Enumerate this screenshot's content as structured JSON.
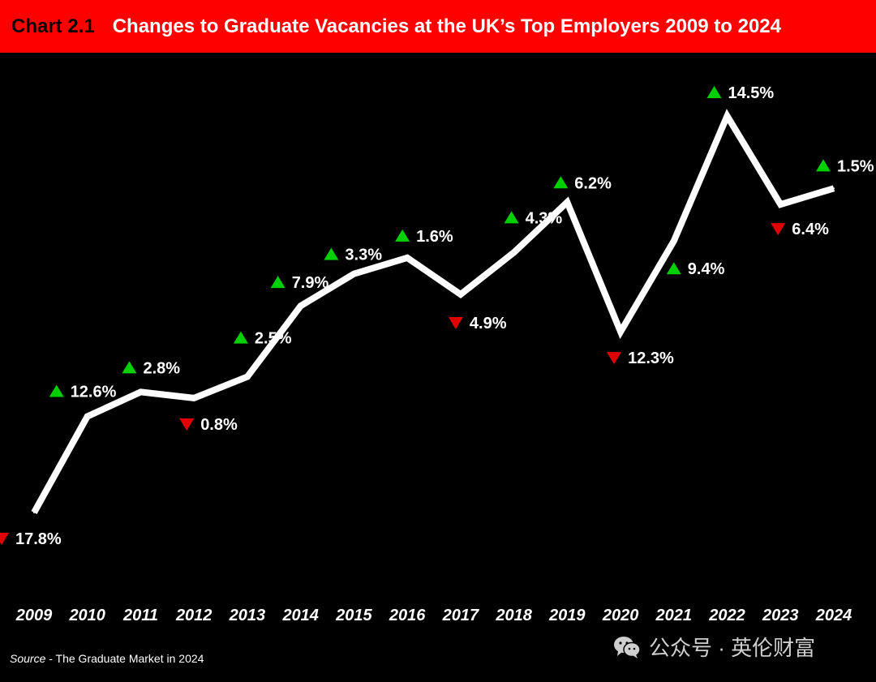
{
  "header": {
    "chart_number": "Chart 2.1",
    "title": "Changes to Graduate Vacancies at the UK’s Top Employers 2009 to 2024"
  },
  "source": {
    "label": "Source",
    "text": " - The Graduate Market in 2024"
  },
  "watermark": {
    "icon": "wechat-icon",
    "text": "公众号 · 英伦财富"
  },
  "colors": {
    "title_bar": "#ff0000",
    "background": "#000000",
    "line": "#ffffff",
    "up": "#00d000",
    "down": "#e00000"
  },
  "chart_data": {
    "type": "line",
    "title": "Changes to Graduate Vacancies at the UK’s Top Employers 2009 to 2024",
    "xlabel": "",
    "ylabel": "",
    "grid": false,
    "categories": [
      "2009",
      "2010",
      "2011",
      "2012",
      "2013",
      "2014",
      "2015",
      "2016",
      "2017",
      "2018",
      "2019",
      "2020",
      "2021",
      "2022",
      "2023",
      "2024"
    ],
    "series": [
      {
        "values": [
          0,
          12.6,
          15.8,
          15.0,
          17.8,
          27.1,
          31.3,
          33.4,
          28.6,
          34.1,
          40.7,
          23.7,
          35.6,
          52.0,
          40.4,
          42.5
        ]
      }
    ],
    "annotations": [
      {
        "x": "2009",
        "label": "17.8%",
        "direction": "down"
      },
      {
        "x": "2010",
        "label": "12.6%",
        "direction": "up"
      },
      {
        "x": "2011",
        "label": "2.8%",
        "direction": "up"
      },
      {
        "x": "2012",
        "label": "0.8%",
        "direction": "down"
      },
      {
        "x": "2013",
        "label": "2.5%",
        "direction": "up"
      },
      {
        "x": "2014",
        "label": "7.9%",
        "direction": "up"
      },
      {
        "x": "2015",
        "label": "3.3%",
        "direction": "up"
      },
      {
        "x": "2016",
        "label": "1.6%",
        "direction": "up"
      },
      {
        "x": "2017",
        "label": "4.9%",
        "direction": "down"
      },
      {
        "x": "2018",
        "label": "4.3%",
        "direction": "up"
      },
      {
        "x": "2019",
        "label": "6.2%",
        "direction": "up"
      },
      {
        "x": "2020",
        "label": "12.3%",
        "direction": "down"
      },
      {
        "x": "2021",
        "label": "9.4%",
        "direction": "up"
      },
      {
        "x": "2022",
        "label": "14.5%",
        "direction": "up"
      },
      {
        "x": "2023",
        "label": "6.4%",
        "direction": "down"
      },
      {
        "x": "2024",
        "label": "1.5%",
        "direction": "up"
      }
    ]
  }
}
